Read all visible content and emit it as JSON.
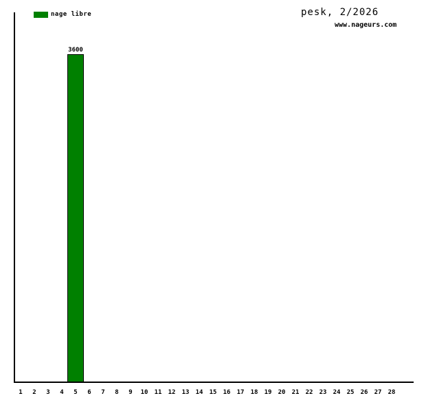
{
  "page": {
    "title": "pesk, 2/2026",
    "watermark": "www.nageurs.com"
  },
  "legend": {
    "items": [
      {
        "label": "nage libre",
        "color": "#008000"
      }
    ]
  },
  "chart_data": {
    "type": "bar",
    "title": "pesk, 2/2026",
    "xlabel": "",
    "ylabel": "",
    "categories": [
      1,
      2,
      3,
      4,
      5,
      6,
      7,
      8,
      9,
      10,
      11,
      12,
      13,
      14,
      15,
      16,
      17,
      18,
      19,
      20,
      21,
      22,
      23,
      24,
      25,
      26,
      27,
      28
    ],
    "series": [
      {
        "name": "nage libre",
        "color": "#008000",
        "values": [
          0,
          0,
          0,
          0,
          3600,
          0,
          0,
          0,
          0,
          0,
          0,
          0,
          0,
          0,
          0,
          0,
          0,
          0,
          0,
          0,
          0,
          0,
          0,
          0,
          0,
          0,
          0,
          0
        ]
      }
    ],
    "ylim": [
      0,
      3600
    ],
    "grid": false,
    "legend_position": "top-left",
    "bar_value_labels": true,
    "axis_color": "#000000",
    "annotations": [
      "3600"
    ]
  }
}
